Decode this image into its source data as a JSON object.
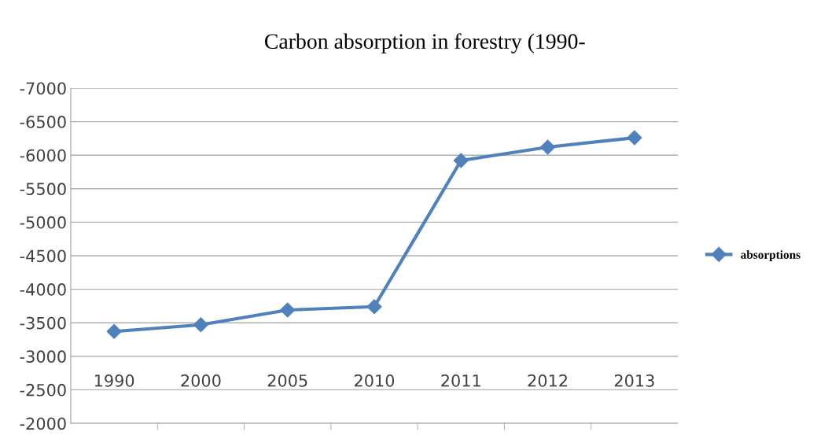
{
  "chart_data": {
    "type": "line",
    "title": "Carbon absorption in forestry (1990-",
    "categories": [
      "1990",
      "2000",
      "2005",
      "2010",
      "2011",
      "2012",
      "2013"
    ],
    "series": [
      {
        "name": "absorptions",
        "color": "#4f81bd",
        "values": [
          -3370,
          -3470,
          -3690,
          -3740,
          -5920,
          -6120,
          -6260
        ]
      }
    ],
    "ylim": [
      -2000,
      -7000
    ],
    "yticks": [
      -2000,
      -2500,
      -3000,
      -3500,
      -4000,
      -4500,
      -5000,
      -5500,
      -6000,
      -6500,
      -7000
    ],
    "grid": "y",
    "legend": "right",
    "marker": "diamond",
    "line_style": "solid"
  }
}
